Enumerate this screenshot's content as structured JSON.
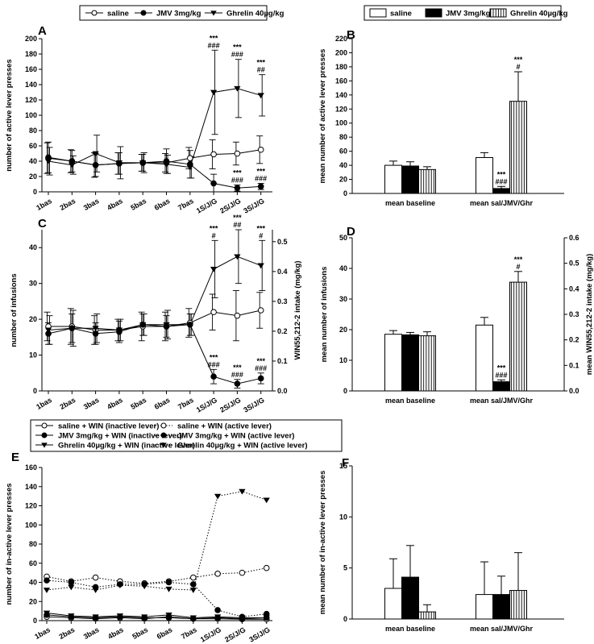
{
  "colors": {
    "ink": "#000000",
    "paper": "#ffffff"
  },
  "chart_data": [
    {
      "id": "A",
      "type": "line",
      "panel_label": "A",
      "title": "",
      "xlabel": "",
      "ylabel": "number of active lever presses",
      "categories": [
        "1bas",
        "2bas",
        "3bas",
        "4bas",
        "5bas",
        "6bas",
        "7bas",
        "1S/J/G",
        "2S/J/G",
        "3S/J/G"
      ],
      "ylim": [
        0,
        200
      ],
      "yticks": [
        0,
        20,
        40,
        60,
        80,
        100,
        120,
        140,
        160,
        180,
        200
      ],
      "legend": {
        "placement": "top",
        "entries": [
          {
            "label": "saline",
            "marker": "open-circle",
            "line": "solid"
          },
          {
            "label": "JMV 3mg/kg",
            "marker": "filled-circle",
            "line": "solid"
          },
          {
            "label": "Ghrelin 40µg/kg",
            "marker": "down-triangle",
            "line": "solid"
          }
        ]
      },
      "series": [
        {
          "name": "saline",
          "marker": "open-circle",
          "line": "solid",
          "values": [
            44,
            40,
            35,
            37,
            38,
            38,
            44,
            49,
            50,
            55
          ],
          "err": [
            20,
            15,
            16,
            14,
            11,
            12,
            14,
            19,
            15,
            18
          ]
        },
        {
          "name": "JMV 3mg/kg",
          "marker": "filled-circle",
          "line": "solid",
          "values": [
            45,
            40,
            35,
            37,
            38,
            40,
            36,
            11,
            5,
            7
          ],
          "err": [
            20,
            14,
            15,
            14,
            11,
            16,
            18,
            12,
            4,
            4
          ]
        },
        {
          "name": "Ghrelin 40µg/kg",
          "marker": "down-triangle",
          "line": "solid",
          "values": [
            40,
            35,
            50,
            38,
            38,
            36,
            32,
            130,
            135,
            126
          ],
          "err": [
            18,
            12,
            24,
            21,
            13,
            12,
            14,
            55,
            38,
            27
          ]
        }
      ],
      "annotations": [
        {
          "x": "1S/J/G",
          "series": "Ghrelin 40µg/kg",
          "text": [
            "***",
            "###"
          ]
        },
        {
          "x": "2S/J/G",
          "series": "Ghrelin 40µg/kg",
          "text": [
            "***",
            "###"
          ]
        },
        {
          "x": "3S/J/G",
          "series": "Ghrelin 40µg/kg",
          "text": [
            "***",
            "##"
          ]
        },
        {
          "x": "2S/J/G",
          "series": "JMV 3mg/kg",
          "text": [
            "***",
            "###"
          ]
        },
        {
          "x": "3S/J/G",
          "series": "JMV 3mg/kg",
          "text": [
            "***",
            "###"
          ]
        }
      ]
    },
    {
      "id": "B",
      "type": "bar",
      "panel_label": "B",
      "ylabel": "mean number of active lever presses",
      "categories": [
        "mean baseline",
        "mean sal/JMV/Ghr"
      ],
      "ylim": [
        0,
        220
      ],
      "yticks": [
        0,
        20,
        40,
        60,
        80,
        100,
        120,
        140,
        160,
        180,
        200,
        220
      ],
      "legend": {
        "placement": "top",
        "entries": [
          {
            "label": "saline",
            "fill": "open"
          },
          {
            "label": "JMV 3mg/kg",
            "fill": "black"
          },
          {
            "label": "Ghrelin 40µg/kg",
            "fill": "hatched"
          }
        ]
      },
      "series": [
        {
          "name": "saline",
          "fill": "open",
          "values": [
            40,
            51
          ],
          "err": [
            6,
            7
          ]
        },
        {
          "name": "JMV 3mg/kg",
          "fill": "black",
          "values": [
            39,
            7
          ],
          "err": [
            6,
            3
          ]
        },
        {
          "name": "Ghrelin 40µg/kg",
          "fill": "hatched",
          "values": [
            34,
            131
          ],
          "err": [
            4,
            42
          ]
        }
      ],
      "annotations": [
        {
          "category": "mean sal/JMV/Ghr",
          "series": "JMV 3mg/kg",
          "text": [
            "***",
            "###"
          ]
        },
        {
          "category": "mean sal/JMV/Ghr",
          "series": "Ghrelin 40µg/kg",
          "text": [
            "***",
            "#"
          ]
        }
      ]
    },
    {
      "id": "C",
      "type": "line",
      "panel_label": "C",
      "ylabel": "number of infusions",
      "y2label": "WIN55,212-2 intake (mg/kg)",
      "categories": [
        "1bas",
        "2bas",
        "3bas",
        "4bas",
        "5bas",
        "6bas",
        "7bas",
        "1S/J/G",
        "2S/J/G",
        "3S/J/G"
      ],
      "ylim": [
        0,
        45
      ],
      "yticks": [
        0,
        10,
        20,
        30,
        40
      ],
      "y2lim": [
        0,
        0.54
      ],
      "y2ticks": [
        0.0,
        0.1,
        0.2,
        0.3,
        0.4,
        0.5
      ],
      "series": [
        {
          "name": "saline",
          "marker": "open-circle",
          "line": "solid",
          "values": [
            18,
            18,
            17,
            17,
            18,
            18,
            19,
            22,
            21,
            22.5
          ],
          "err": [
            4,
            5,
            4,
            3,
            4,
            4,
            4,
            5,
            7,
            5
          ]
        },
        {
          "name": "JMV 3mg/kg",
          "marker": "filled-circle",
          "line": "solid",
          "values": [
            16,
            17.5,
            16,
            16.5,
            18.5,
            18,
            18.5,
            4,
            2,
            3.5
          ],
          "err": [
            3,
            4,
            3,
            3,
            3,
            3,
            3,
            2,
            1.2,
            1.5
          ]
        },
        {
          "name": "Ghrelin 40µg/kg",
          "marker": "down-triangle",
          "line": "solid",
          "values": [
            17,
            17.5,
            17.5,
            17,
            18.5,
            18.5,
            18.5,
            34,
            37.5,
            35
          ],
          "err": [
            4,
            5,
            4,
            3,
            3,
            4,
            3,
            8,
            7.5,
            7
          ]
        }
      ],
      "annotations": [
        {
          "x": "1S/J/G",
          "series": "Ghrelin 40µg/kg",
          "text": [
            "***",
            "#"
          ]
        },
        {
          "x": "2S/J/G",
          "series": "Ghrelin 40µg/kg",
          "text": [
            "***",
            "##"
          ]
        },
        {
          "x": "3S/J/G",
          "series": "Ghrelin 40µg/kg",
          "text": [
            "***",
            "#"
          ]
        },
        {
          "x": "1S/J/G",
          "series": "JMV 3mg/kg",
          "text": [
            "***",
            "###"
          ]
        },
        {
          "x": "2S/J/G",
          "series": "JMV 3mg/kg",
          "text": [
            "***",
            "###"
          ]
        },
        {
          "x": "3S/J/G",
          "series": "JMV 3mg/kg",
          "text": [
            "***",
            "###"
          ]
        }
      ]
    },
    {
      "id": "D",
      "type": "bar",
      "panel_label": "D",
      "ylabel": "mean number of infusions",
      "y2label": "mean WIN55,212-2 intake (mg/kg)",
      "categories": [
        "mean baseline",
        "mean sal/JMV/Ghr"
      ],
      "ylim": [
        0,
        50
      ],
      "yticks": [
        0,
        10,
        20,
        30,
        40,
        50
      ],
      "y2lim": [
        0,
        0.6
      ],
      "y2ticks": [
        0.0,
        0.1,
        0.2,
        0.3,
        0.4,
        0.5,
        0.6
      ],
      "series": [
        {
          "name": "saline",
          "fill": "open",
          "values": [
            18.5,
            21.5
          ],
          "err": [
            1.2,
            2.5
          ]
        },
        {
          "name": "JMV 3mg/kg",
          "fill": "black",
          "values": [
            18.3,
            3
          ],
          "err": [
            0.8,
            0.6
          ]
        },
        {
          "name": "Ghrelin 40µg/kg",
          "fill": "hatched",
          "values": [
            18,
            35.5
          ],
          "err": [
            1.3,
            3.5
          ]
        }
      ],
      "annotations": [
        {
          "category": "mean sal/JMV/Ghr",
          "series": "JMV 3mg/kg",
          "text": [
            "***",
            "###"
          ]
        },
        {
          "category": "mean sal/JMV/Ghr",
          "series": "Ghrelin 40µg/kg",
          "text": [
            "***",
            "#"
          ]
        }
      ]
    },
    {
      "id": "E",
      "type": "line",
      "panel_label": "E",
      "ylabel": "number of in-active lever presses",
      "categories": [
        "1bas",
        "2bas",
        "3bas",
        "4bas",
        "5bas",
        "6bas",
        "7bas",
        "1S/J/G",
        "2S/J/G",
        "3S/J/G"
      ],
      "ylim": [
        0,
        160
      ],
      "yticks": [
        0,
        20,
        40,
        60,
        80,
        100,
        120,
        140,
        160
      ],
      "legend": {
        "placement": "top",
        "entries": [
          {
            "label": "saline + WIN (inactive lever)",
            "marker": "open-circle",
            "line": "solid"
          },
          {
            "label": "saline + WIN (active lever)",
            "marker": "open-circle",
            "line": "dotted"
          },
          {
            "label": "JMV 3mg/kg + WIN (inactive lever)",
            "marker": "filled-circle",
            "line": "solid"
          },
          {
            "label": "JMV 3mg/kg + WIN (active lever)",
            "marker": "filled-circle",
            "line": "dotted"
          },
          {
            "label": "Ghrelin 40µg/kg + WIN (inactive lever)",
            "marker": "down-triangle",
            "line": "solid"
          },
          {
            "label": "Ghrelin 40µg/kg + WIN (active lever)",
            "marker": "down-triangle",
            "line": "dotted"
          }
        ]
      },
      "series": [
        {
          "name": "saline + WIN (inactive lever)",
          "marker": "open-circle",
          "line": "solid",
          "values": [
            4,
            3,
            2,
            3,
            2,
            4,
            2,
            2,
            1.5,
            1.5
          ]
        },
        {
          "name": "saline + WIN (active lever)",
          "marker": "open-circle",
          "line": "dotted",
          "values": [
            46,
            41,
            45,
            41,
            39,
            41,
            45,
            49,
            50,
            55
          ]
        },
        {
          "name": "JMV 3mg/kg + WIN (inactive lever)",
          "marker": "filled-circle",
          "line": "solid",
          "values": [
            6,
            4,
            3,
            4,
            3,
            3,
            2,
            3,
            2,
            3
          ]
        },
        {
          "name": "JMV 3mg/kg + WIN (active lever)",
          "marker": "filled-circle",
          "line": "dotted",
          "values": [
            42,
            40,
            35,
            38,
            38,
            40,
            38,
            11,
            4,
            7
          ]
        },
        {
          "name": "Ghrelin 40µg/kg + WIN (inactive lever)",
          "marker": "down-triangle",
          "line": "solid",
          "values": [
            8,
            5,
            4,
            5,
            4,
            6,
            3,
            4,
            3,
            3
          ]
        },
        {
          "name": "Ghrelin 40µg/kg + WIN (active lever)",
          "marker": "down-triangle",
          "line": "dotted",
          "values": [
            32,
            35,
            32,
            37,
            36,
            33,
            32,
            130,
            135,
            126
          ]
        }
      ]
    },
    {
      "id": "F",
      "type": "bar",
      "panel_label": "F",
      "ylabel": "mean number of in-active lever presses",
      "categories": [
        "mean baseline",
        "mean sal/JMV/Ghr"
      ],
      "ylim": [
        0,
        15
      ],
      "yticks": [
        0,
        5,
        10,
        15
      ],
      "series": [
        {
          "name": "saline",
          "fill": "open",
          "values": [
            3,
            2.4
          ],
          "err": [
            2.9,
            3.2
          ]
        },
        {
          "name": "JMV 3mg/kg",
          "fill": "black",
          "values": [
            4.1,
            2.4
          ],
          "err": [
            3.1,
            1.8
          ]
        },
        {
          "name": "Ghrelin 40µg/kg",
          "fill": "hatched",
          "values": [
            0.7,
            2.8
          ],
          "err": [
            0.7,
            3.7
          ]
        }
      ]
    }
  ]
}
